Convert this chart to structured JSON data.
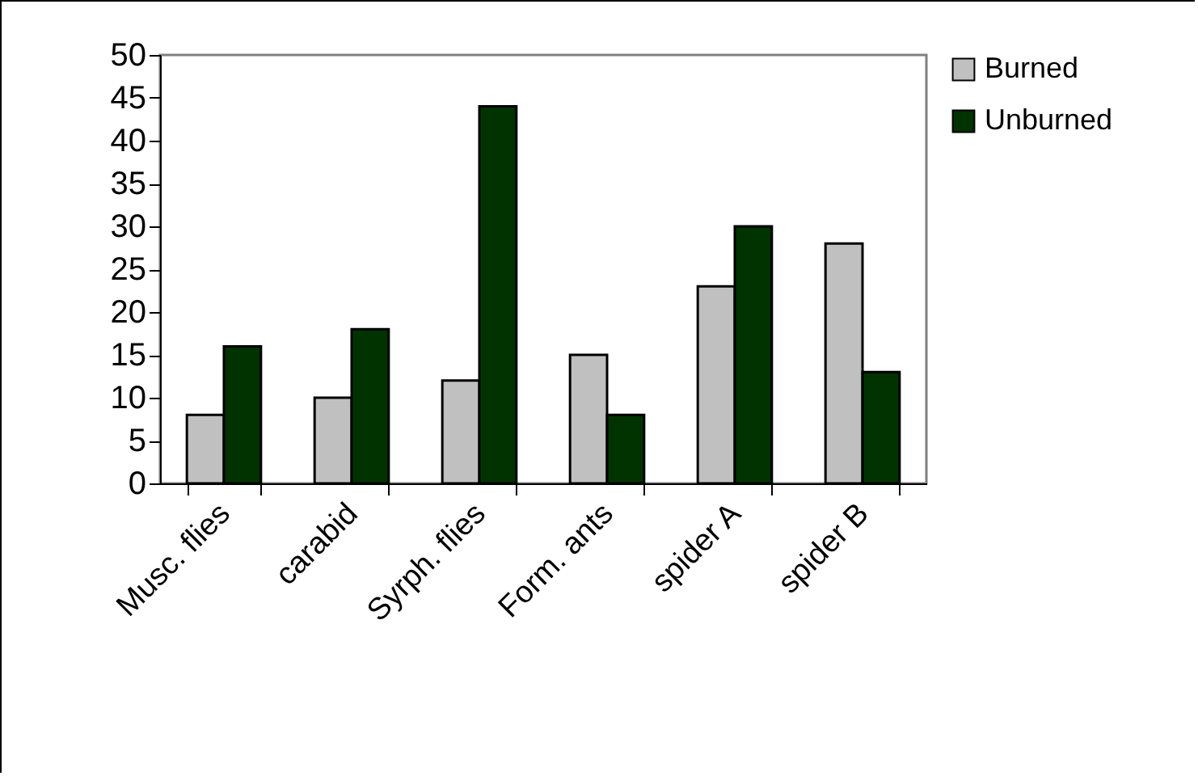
{
  "chart_data": {
    "type": "bar",
    "categories": [
      "Musc. flies",
      "carabid",
      "Syrph. flies",
      "Form. ants",
      "spider A",
      "spider B"
    ],
    "series": [
      {
        "name": "Burned",
        "color": "#c0c0c0",
        "values": [
          8,
          10,
          12,
          15,
          23,
          28
        ]
      },
      {
        "name": "Unburned",
        "color": "#003300",
        "values": [
          16,
          18,
          44,
          8,
          30,
          13
        ]
      }
    ],
    "ylim": [
      0,
      50
    ],
    "yticks": [
      0,
      5,
      10,
      15,
      20,
      25,
      30,
      35,
      40,
      45,
      50
    ],
    "grid": false,
    "legend": "right"
  }
}
